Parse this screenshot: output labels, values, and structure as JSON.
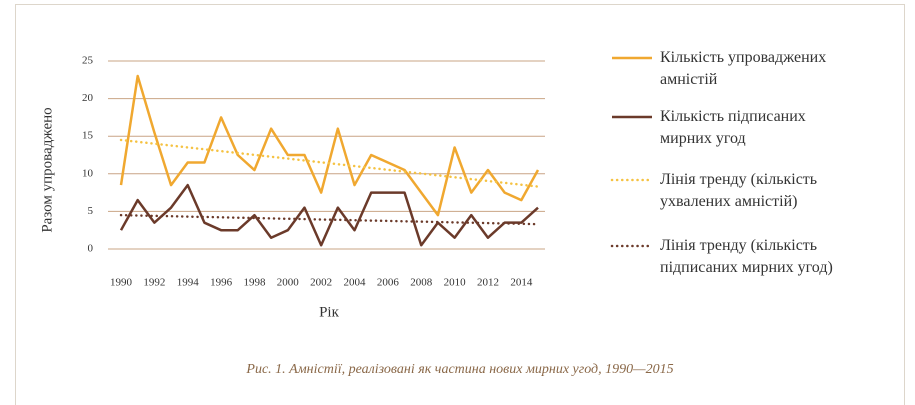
{
  "chart_data": {
    "type": "line",
    "ylabel": "Разом упроваджено",
    "xlabel": "Рік",
    "caption": "Рис. 1. Амністії, реалізовані як частина нових мирних угод, 1990—2015",
    "x": [
      1990,
      1991,
      1992,
      1993,
      1994,
      1995,
      1996,
      1997,
      1998,
      1999,
      2000,
      2001,
      2002,
      2003,
      2004,
      2005,
      2006,
      2007,
      2008,
      2009,
      2010,
      2011,
      2012,
      2013,
      2014,
      2015
    ],
    "xlim": [
      1990,
      2015
    ],
    "xticks": [
      1990,
      1992,
      1994,
      1996,
      1998,
      2000,
      2002,
      2004,
      2006,
      2008,
      2010,
      2012,
      2014
    ],
    "ylim": [
      0,
      25
    ],
    "yticks": [
      0,
      5,
      10,
      15,
      20,
      25
    ],
    "grid": true,
    "legend": "right",
    "series": [
      {
        "name": "Кількість упроваджених амністій",
        "color": "#f0a830",
        "style": "solid",
        "values": [
          8.5,
          23,
          15.5,
          8.5,
          11.5,
          11.5,
          17.5,
          12.5,
          10.5,
          16,
          12.5,
          12.5,
          7.5,
          16,
          8.5,
          12.5,
          11.5,
          10.5,
          7.5,
          4.5,
          13.5,
          7.5,
          10.5,
          7.5,
          6.5,
          10.5
        ]
      },
      {
        "name": "Кількість підписаних мирних угод",
        "color": "#6b3a2a",
        "style": "solid",
        "values": [
          2.5,
          6.5,
          3.5,
          5.5,
          8.5,
          3.5,
          2.5,
          2.5,
          4.5,
          1.5,
          2.5,
          5.5,
          0.5,
          5.5,
          2.5,
          7.5,
          7.5,
          7.5,
          0.5,
          3.5,
          1.5,
          4.5,
          1.5,
          3.5,
          3.5,
          5.5
        ]
      },
      {
        "name": "Лінія тренду (кількість ухвалених амністій)",
        "color": "#f5c242",
        "style": "dotted",
        "x": [
          1990,
          2015
        ],
        "values": [
          14.5,
          8.3
        ]
      },
      {
        "name": "Лінія тренду (кількість підписаних мирних угод)",
        "color": "#6b3a2a",
        "style": "dotted",
        "x": [
          1990,
          2015
        ],
        "values": [
          4.5,
          3.3
        ]
      }
    ]
  }
}
